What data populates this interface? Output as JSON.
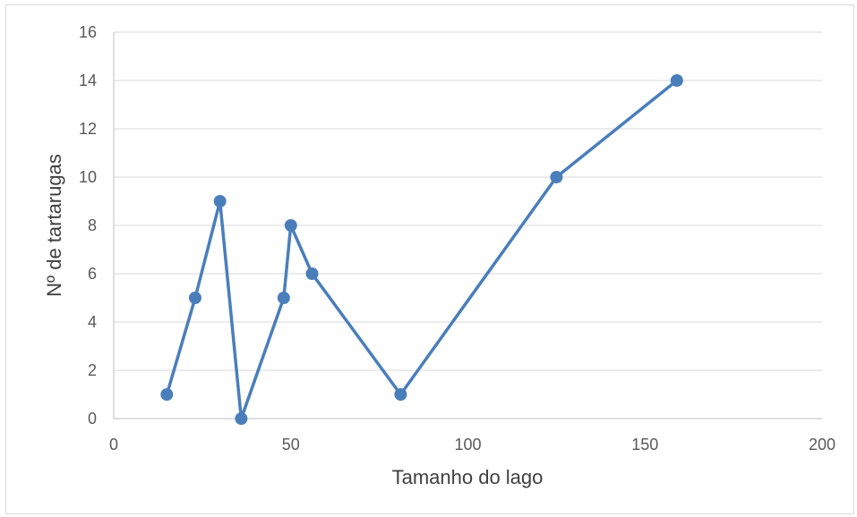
{
  "chart_data": {
    "type": "line",
    "title": "",
    "xlabel": "Tamanho do lago",
    "ylabel": "Nº de tartarugas",
    "xlim": [
      0,
      200
    ],
    "ylim": [
      0,
      16
    ],
    "x_ticks": [
      0,
      50,
      100,
      150,
      200
    ],
    "y_ticks": [
      0,
      2,
      4,
      6,
      8,
      10,
      12,
      14,
      16
    ],
    "grid": "horizontal",
    "legend": "none",
    "series": [
      {
        "color": "#4a7ebb",
        "marker": "circle",
        "points": [
          {
            "x": 15,
            "y": 1
          },
          {
            "x": 23,
            "y": 5
          },
          {
            "x": 30,
            "y": 9
          },
          {
            "x": 36,
            "y": 0
          },
          {
            "x": 48,
            "y": 5
          },
          {
            "x": 50,
            "y": 8
          },
          {
            "x": 56,
            "y": 6
          },
          {
            "x": 81,
            "y": 1
          },
          {
            "x": 125,
            "y": 10
          },
          {
            "x": 159,
            "y": 14
          }
        ]
      }
    ]
  }
}
